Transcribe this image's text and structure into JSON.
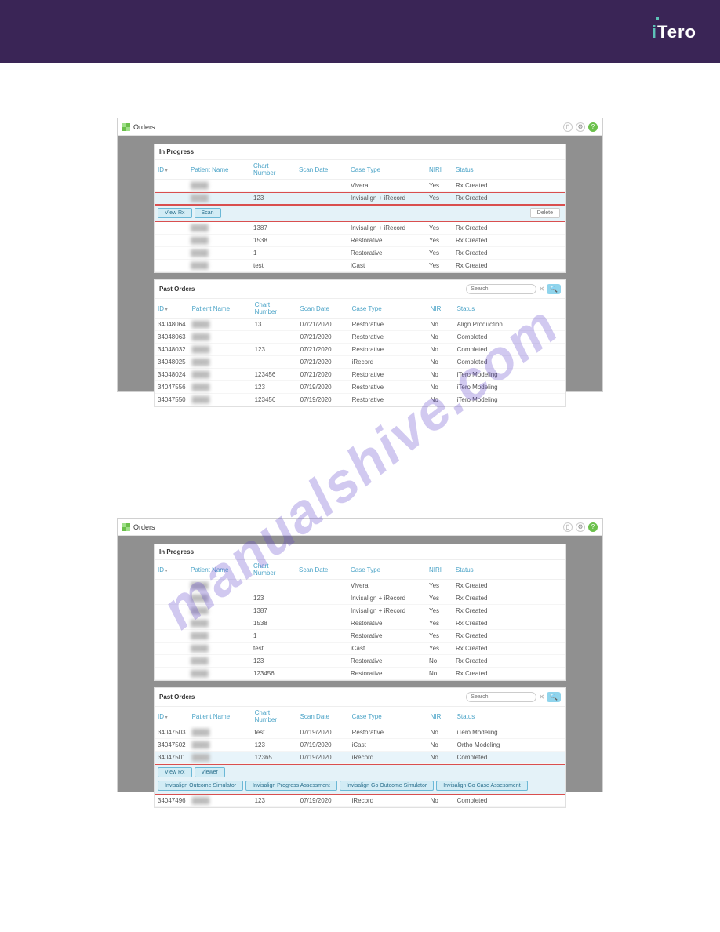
{
  "page": {
    "logo_text": "iTero",
    "watermark": "manualshive.com"
  },
  "titlebar": {
    "title": "Orders",
    "help": "?"
  },
  "columns": {
    "id": "ID",
    "patient": "Patient Name",
    "chart": "Chart Number",
    "scan": "Scan Date",
    "case": "Case Type",
    "niri": "NIRI",
    "status": "Status"
  },
  "search": {
    "placeholder": "Search",
    "clear": "✕",
    "go": "🔍"
  },
  "buttons": {
    "view_rx": "View Rx",
    "scan": "Scan",
    "delete": "Delete",
    "viewer": "Viewer",
    "ios": "Invisalign Outcome Simulator",
    "ipa": "Invisalign Progress Assessment",
    "igos": "Invisalign Go Outcome Simulator",
    "igca": "Invisalign Go Case Assessment"
  },
  "sectionA": {
    "in_progress": {
      "title": "In Progress",
      "rows": [
        {
          "id": "",
          "pn": "████",
          "cn": "",
          "sd": "",
          "ct": "Vivera",
          "niri": "Yes",
          "st": "Rx Created"
        },
        {
          "id": "",
          "pn": "████",
          "cn": "123",
          "sd": "",
          "ct": "Invisalign + iRecord",
          "niri": "Yes",
          "st": "Rx Created",
          "selected": true
        },
        {
          "id": "",
          "pn": "████",
          "cn": "1387",
          "sd": "",
          "ct": "Invisalign + iRecord",
          "niri": "Yes",
          "st": "Rx Created"
        },
        {
          "id": "",
          "pn": "████",
          "cn": "1538",
          "sd": "",
          "ct": "Restorative",
          "niri": "Yes",
          "st": "Rx Created"
        },
        {
          "id": "",
          "pn": "████",
          "cn": "1",
          "sd": "",
          "ct": "Restorative",
          "niri": "Yes",
          "st": "Rx Created"
        },
        {
          "id": "",
          "pn": "████",
          "cn": "test",
          "sd": "",
          "ct": "iCast",
          "niri": "Yes",
          "st": "Rx Created"
        }
      ]
    },
    "past": {
      "title": "Past Orders",
      "rows": [
        {
          "id": "34048064",
          "pn": "████",
          "cn": "13",
          "sd": "07/21/2020",
          "ct": "Restorative",
          "niri": "No",
          "st": "Align Production"
        },
        {
          "id": "34048063",
          "pn": "████",
          "cn": "",
          "sd": "07/21/2020",
          "ct": "Restorative",
          "niri": "No",
          "st": "Completed"
        },
        {
          "id": "34048032",
          "pn": "████",
          "cn": "123",
          "sd": "07/21/2020",
          "ct": "Restorative",
          "niri": "No",
          "st": "Completed"
        },
        {
          "id": "34048025",
          "pn": "████",
          "cn": "",
          "sd": "07/21/2020",
          "ct": "iRecord",
          "niri": "No",
          "st": "Completed"
        },
        {
          "id": "34048024",
          "pn": "████",
          "cn": "123456",
          "sd": "07/21/2020",
          "ct": "Restorative",
          "niri": "No",
          "st": "iTero Modeling"
        },
        {
          "id": "34047556",
          "pn": "████",
          "cn": "123",
          "sd": "07/19/2020",
          "ct": "Restorative",
          "niri": "No",
          "st": "iTero Modeling"
        },
        {
          "id": "34047550",
          "pn": "████",
          "cn": "123456",
          "sd": "07/19/2020",
          "ct": "Restorative",
          "niri": "No",
          "st": "iTero Modeling"
        }
      ]
    }
  },
  "sectionB": {
    "in_progress": {
      "title": "In Progress",
      "rows": [
        {
          "id": "",
          "pn": "████",
          "cn": "",
          "sd": "",
          "ct": "Vivera",
          "niri": "Yes",
          "st": "Rx Created"
        },
        {
          "id": "",
          "pn": "████",
          "cn": "123",
          "sd": "",
          "ct": "Invisalign + iRecord",
          "niri": "Yes",
          "st": "Rx Created"
        },
        {
          "id": "",
          "pn": "████",
          "cn": "1387",
          "sd": "",
          "ct": "Invisalign + iRecord",
          "niri": "Yes",
          "st": "Rx Created"
        },
        {
          "id": "",
          "pn": "████",
          "cn": "1538",
          "sd": "",
          "ct": "Restorative",
          "niri": "Yes",
          "st": "Rx Created"
        },
        {
          "id": "",
          "pn": "████",
          "cn": "1",
          "sd": "",
          "ct": "Restorative",
          "niri": "Yes",
          "st": "Rx Created"
        },
        {
          "id": "",
          "pn": "████",
          "cn": "test",
          "sd": "",
          "ct": "iCast",
          "niri": "Yes",
          "st": "Rx Created"
        },
        {
          "id": "",
          "pn": "████",
          "cn": "123",
          "sd": "",
          "ct": "Restorative",
          "niri": "No",
          "st": "Rx Created"
        },
        {
          "id": "",
          "pn": "████",
          "cn": "123456",
          "sd": "",
          "ct": "Restorative",
          "niri": "No",
          "st": "Rx Created"
        }
      ]
    },
    "past": {
      "title": "Past Orders",
      "rows": [
        {
          "id": "34047503",
          "pn": "████",
          "cn": "test",
          "sd": "07/19/2020",
          "ct": "Restorative",
          "niri": "No",
          "st": "iTero Modeling"
        },
        {
          "id": "34047502",
          "pn": "████",
          "cn": "123",
          "sd": "07/19/2020",
          "ct": "iCast",
          "niri": "No",
          "st": "Ortho Modeling"
        },
        {
          "id": "34047501",
          "pn": "████",
          "cn": "12365",
          "sd": "07/19/2020",
          "ct": "iRecord",
          "niri": "No",
          "st": "Completed",
          "selected": true
        },
        {
          "id": "34047496",
          "pn": "████",
          "cn": "123",
          "sd": "07/19/2020",
          "ct": "iRecord",
          "niri": "No",
          "st": "Completed"
        }
      ]
    }
  }
}
